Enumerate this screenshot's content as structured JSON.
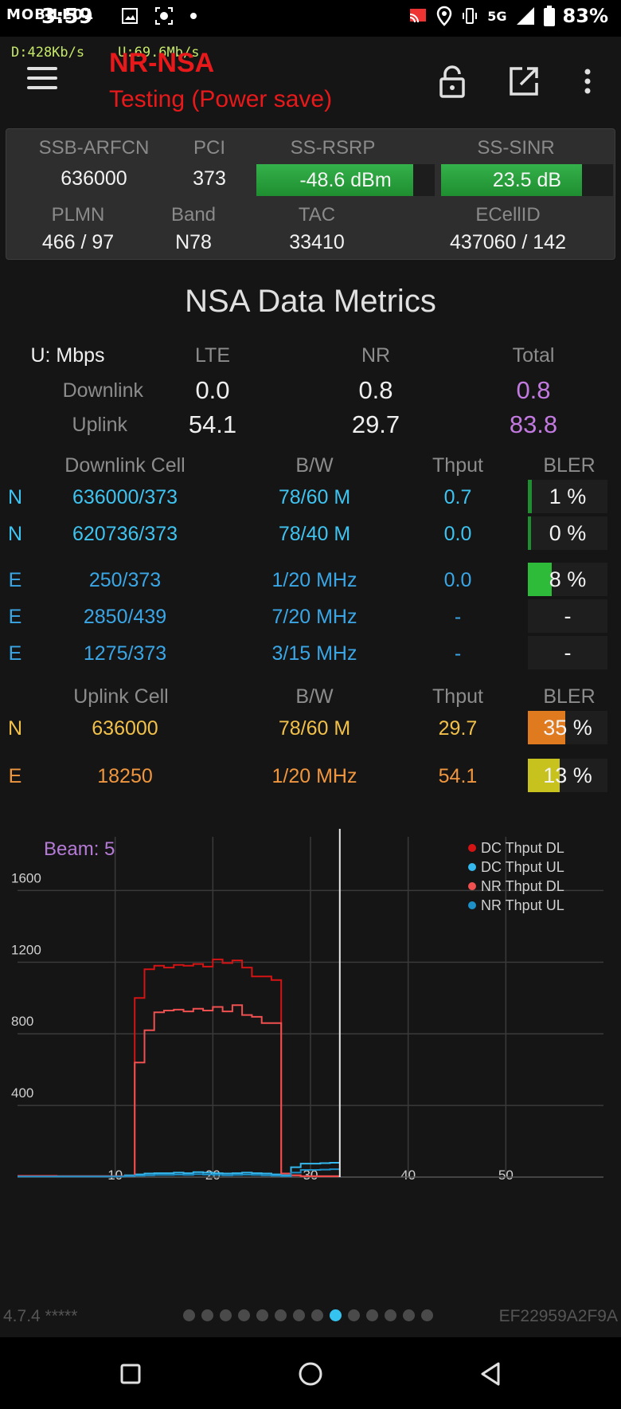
{
  "status_bar": {
    "time": "3:59",
    "watermark": "MOBILE01",
    "network": "5G",
    "battery": "83%"
  },
  "app_bar": {
    "download_rate": "D:428Kb/s",
    "upload_rate": "U:69.6Mb/s",
    "title": "NR-NSA",
    "subtitle": "Testing (Power save)",
    "icons": [
      "menu-icon",
      "lock-icon",
      "open-external-icon",
      "more-vert-icon"
    ]
  },
  "signal": {
    "labels": [
      "SSB-ARFCN",
      "PCI",
      "SS-RSRP",
      "SS-SINR"
    ],
    "arfcn": "636000",
    "pci": "373",
    "rsrp": "-48.6 dBm",
    "rsrp_level": 0.88,
    "sinr": "23.5 dB",
    "sinr_level": 0.82,
    "labels2": [
      "PLMN",
      "Band",
      "TAC",
      "ECellID"
    ],
    "plmn": "466 / 97",
    "band": "N78",
    "tac": "33410",
    "ecellid": "437060 / 142"
  },
  "metrics": {
    "title": "NSA Data Metrics",
    "unit": "U: Mbps",
    "col_lte": "LTE",
    "col_nr": "NR",
    "col_total": "Total",
    "downlink_label": "Downlink",
    "uplink_label": "Uplink",
    "dl": [
      "0.0",
      "0.8",
      "0.8"
    ],
    "ul": [
      "54.1",
      "29.7",
      "83.8"
    ]
  },
  "downlink_cells": {
    "headers": [
      "Downlink Cell",
      "B/W",
      "Thput",
      "BLER"
    ],
    "rows": [
      {
        "tech": "N",
        "cell": "636000/373",
        "bw": "78/60 M",
        "thput": "0.7",
        "bler": "1 %",
        "bler_level": 0.05,
        "bler_color": "#1f8e30"
      },
      {
        "tech": "N",
        "cell": "620736/373",
        "bw": "78/40 M",
        "thput": "0.0",
        "bler": "0 %",
        "bler_level": 0.04,
        "bler_color": "#1f8e30"
      },
      {
        "tech": "E",
        "cell": "250/373",
        "bw": "1/20 MHz",
        "thput": "0.0",
        "bler": "8 %",
        "bler_level": 0.3,
        "bler_color": "#2fbb3a"
      },
      {
        "tech": "E",
        "cell": "2850/439",
        "bw": "7/20 MHz",
        "thput": "-",
        "bler": "-",
        "bler_level": 0,
        "bler_color": "#1f8e30"
      },
      {
        "tech": "E",
        "cell": "1275/373",
        "bw": "3/15 MHz",
        "thput": "-",
        "bler": "-",
        "bler_level": 0,
        "bler_color": "#1f8e30"
      }
    ]
  },
  "uplink_cells": {
    "headers": [
      "Uplink Cell",
      "B/W",
      "Thput",
      "BLER"
    ],
    "rows": [
      {
        "tech": "N",
        "cell": "636000",
        "bw": "78/60 M",
        "thput": "29.7",
        "bler": "35 %",
        "bler_level": 0.47,
        "bler_color": "#e07a1e"
      },
      {
        "tech": "E",
        "cell": "18250",
        "bw": "1/20 MHz",
        "thput": "54.1",
        "bler": "13 %",
        "bler_level": 0.4,
        "bler_color": "#c8c21e"
      }
    ]
  },
  "chart_data": {
    "type": "line",
    "annotation": "Beam: 5",
    "xlim": [
      0,
      60
    ],
    "ylim": [
      0,
      1900
    ],
    "x_ticks": [
      10,
      20,
      30,
      40,
      50
    ],
    "y_ticks": [
      400,
      800,
      1200,
      1600
    ],
    "cursor_x": 33,
    "grid": true,
    "legend_position": "top-right",
    "series": [
      {
        "name": "DC Thput DL",
        "color": "#d41414",
        "x": [
          0,
          3,
          4,
          10,
          11,
          12,
          13,
          14,
          15,
          16,
          17,
          18,
          19,
          20,
          21,
          22,
          23,
          24,
          25,
          26,
          27,
          28,
          29,
          30,
          31,
          32,
          33
        ],
        "y": [
          8,
          8,
          5,
          5,
          5,
          1000,
          1160,
          1180,
          1170,
          1185,
          1180,
          1190,
          1175,
          1215,
          1195,
          1210,
          1170,
          1120,
          1120,
          1100,
          20,
          10,
          5,
          5,
          5,
          5,
          5
        ]
      },
      {
        "name": "DC Thput UL",
        "color": "#35b8ee",
        "x": [
          0,
          10,
          11,
          12,
          13,
          14,
          15,
          16,
          17,
          18,
          19,
          20,
          21,
          22,
          23,
          24,
          25,
          26,
          27,
          28,
          29,
          30,
          31,
          32,
          33
        ],
        "y": [
          5,
          5,
          10,
          15,
          20,
          22,
          22,
          25,
          22,
          28,
          25,
          22,
          20,
          22,
          25,
          22,
          20,
          15,
          10,
          55,
          75,
          75,
          78,
          80,
          80
        ]
      },
      {
        "name": "NR Thput DL",
        "color": "#f05050",
        "x": [
          0,
          10,
          11,
          12,
          13,
          14,
          15,
          16,
          17,
          18,
          19,
          20,
          21,
          22,
          23,
          24,
          25,
          26,
          27,
          28,
          29,
          30,
          31,
          32,
          33
        ],
        "y": [
          5,
          5,
          5,
          640,
          820,
          920,
          930,
          935,
          925,
          940,
          930,
          950,
          925,
          960,
          905,
          895,
          860,
          860,
          20,
          10,
          5,
          5,
          5,
          5,
          5
        ]
      },
      {
        "name": "NR Thput UL",
        "color": "#1e90c8",
        "x": [
          0,
          10,
          11,
          12,
          13,
          14,
          15,
          16,
          17,
          18,
          19,
          20,
          21,
          22,
          23,
          24,
          25,
          26,
          27,
          28,
          29,
          30,
          31,
          32,
          33
        ],
        "y": [
          3,
          3,
          5,
          8,
          10,
          12,
          12,
          14,
          12,
          16,
          14,
          12,
          10,
          12,
          14,
          12,
          10,
          8,
          5,
          25,
          40,
          40,
          42,
          44,
          44
        ]
      }
    ]
  },
  "footer": {
    "version": "4.7.4 *****",
    "device_id": "EF22959A2F9A",
    "page_count": 14,
    "active_page": 8
  },
  "nav": [
    "recents-icon",
    "home-icon",
    "back-icon"
  ]
}
